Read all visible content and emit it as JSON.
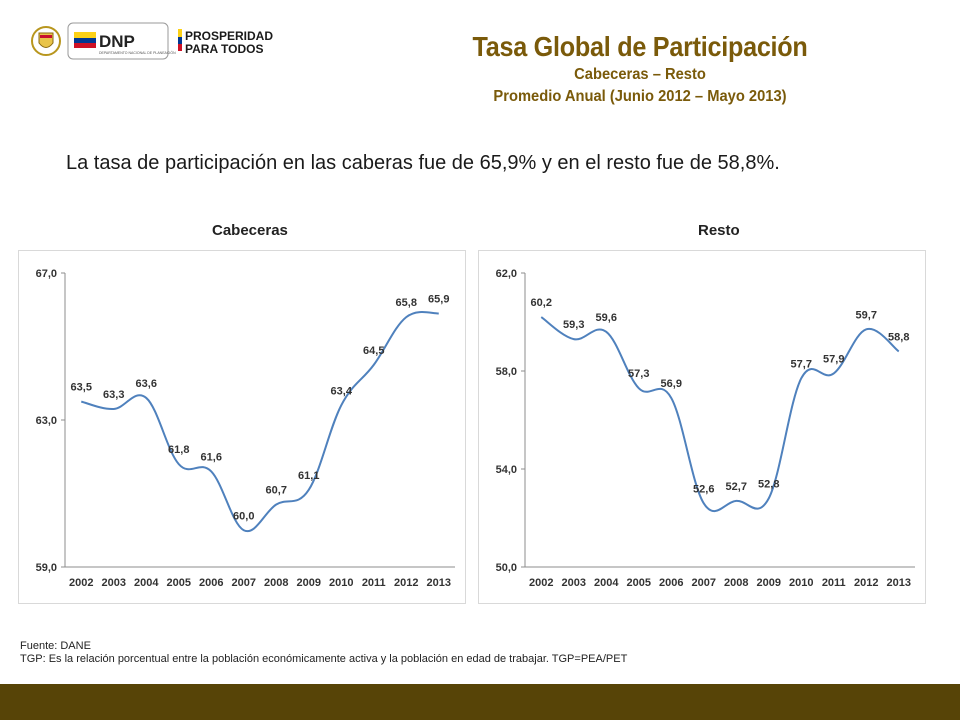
{
  "header": {
    "logo_dnp_text": "DNP",
    "logo_dnp_sub": "DEPARTAMENTO NACIONAL DE PLANEACIÓN",
    "logo_prosperidad_line1": "PROSPERIDAD",
    "logo_prosperidad_line2": "PARA TODOS",
    "title": "Tasa Global de Participación",
    "subtitle1": "Cabeceras – Resto",
    "subtitle2": "Promedio Anual (Junio 2012 – Mayo 2013)"
  },
  "summary": "La tasa de participación en las caberas fue de 65,9% y en el resto fue de 58,8%.",
  "colors": {
    "title": "#7a5a0a",
    "line": "#4f81bd",
    "bottom_bar": "#574407"
  },
  "chart_data": [
    {
      "type": "line",
      "title": "Cabeceras",
      "x": [
        "2002",
        "2003",
        "2004",
        "2005",
        "2006",
        "2007",
        "2008",
        "2009",
        "2010",
        "2011",
        "2012",
        "2013"
      ],
      "values": [
        63.5,
        63.3,
        63.6,
        61.8,
        61.6,
        60.0,
        60.7,
        61.1,
        63.4,
        64.5,
        65.8,
        65.9
      ],
      "labels": [
        "63,5",
        "63,3",
        "63,6",
        "61,8",
        "61,6",
        "60,0",
        "60,7",
        "61,1",
        "63,4",
        "64,5",
        "65,8",
        "65,9"
      ],
      "yticks": [
        59.0,
        63.0,
        67.0
      ],
      "ytick_labels": [
        "59,0",
        "63,0",
        "67,0"
      ],
      "ylim": [
        59.0,
        67.0
      ],
      "grid": false,
      "legend": "none"
    },
    {
      "type": "line",
      "title": "Resto",
      "x": [
        "2002",
        "2003",
        "2004",
        "2005",
        "2006",
        "2007",
        "2008",
        "2009",
        "2010",
        "2011",
        "2012",
        "2013"
      ],
      "values": [
        60.2,
        59.3,
        59.6,
        57.3,
        56.9,
        52.6,
        52.7,
        52.8,
        57.7,
        57.9,
        59.7,
        58.8
      ],
      "labels": [
        "60,2",
        "59,3",
        "59,6",
        "57,3",
        "56,9",
        "52,6",
        "52,7",
        "52,8",
        "57,7",
        "57,9",
        "59,7",
        "58,8"
      ],
      "yticks": [
        50.0,
        54.0,
        58.0,
        62.0
      ],
      "ytick_labels": [
        "50,0",
        "54,0",
        "58,0",
        "62,0"
      ],
      "ylim": [
        50.0,
        62.0
      ],
      "grid": false,
      "legend": "none"
    }
  ],
  "footer": {
    "source": "Fuente: DANE",
    "note": "TGP: Es la relación porcentual entre la población económicamente activa y la población  en edad de trabajar. TGP=PEA/PET"
  }
}
